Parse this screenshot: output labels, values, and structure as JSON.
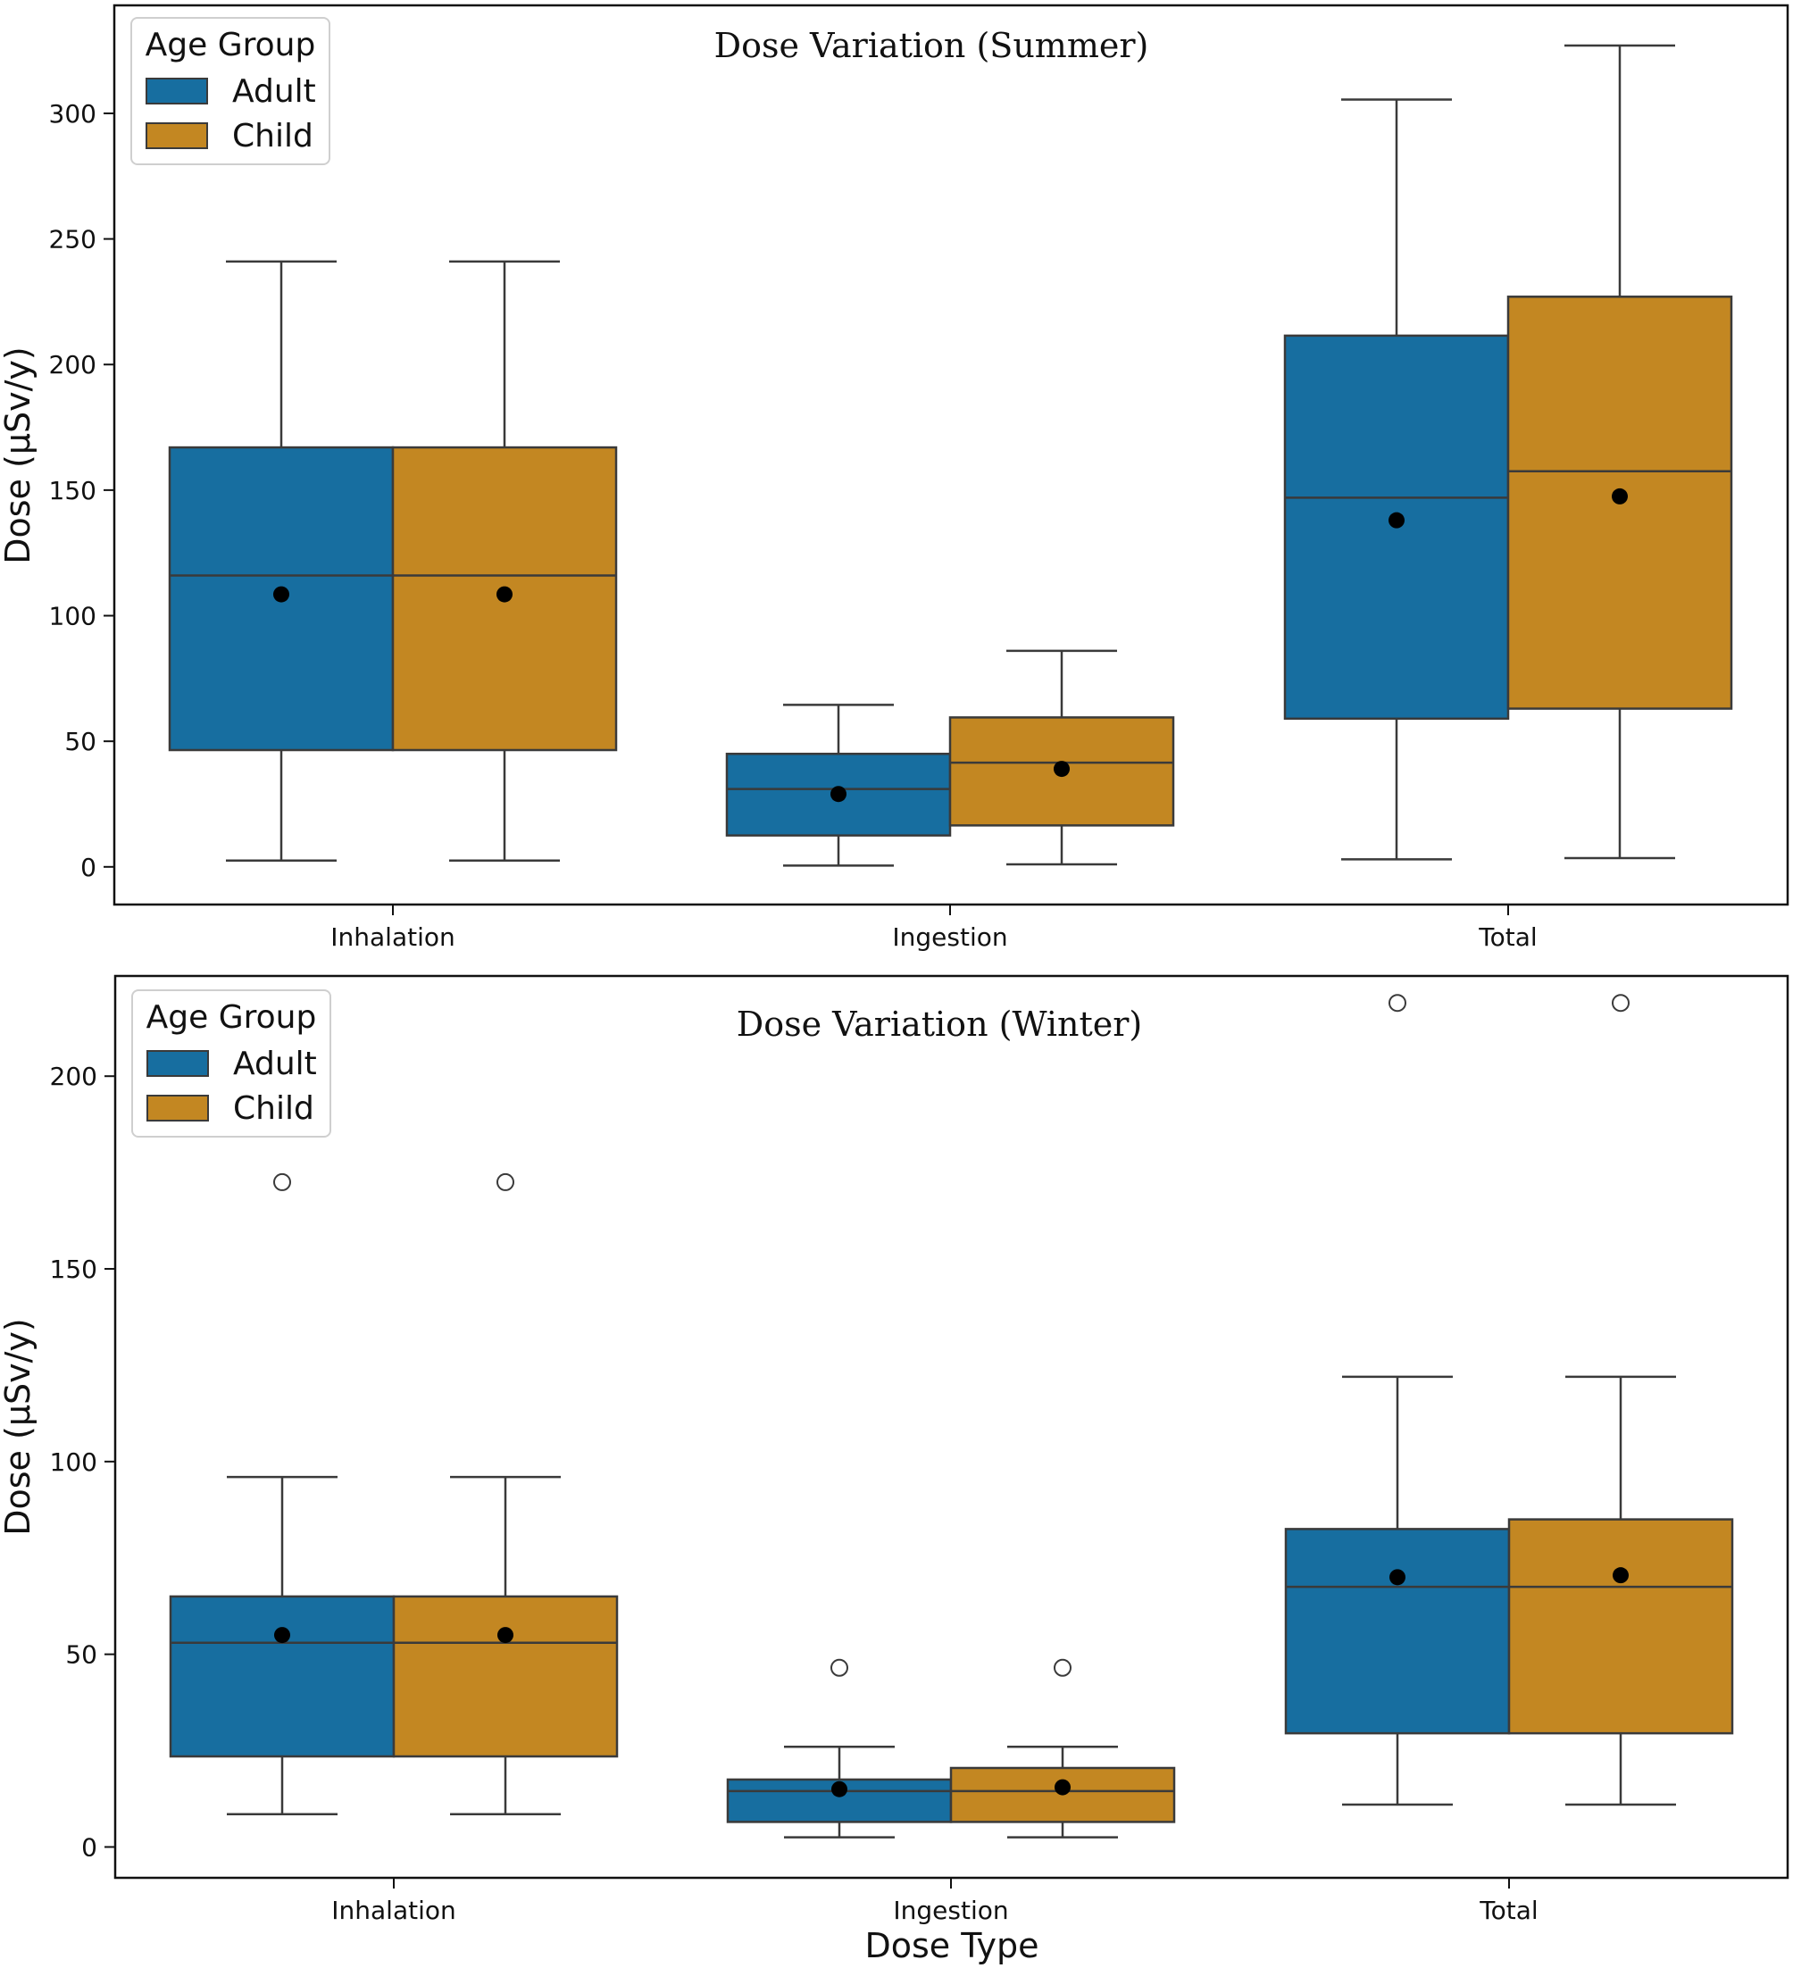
{
  "x_axis_label": "Dose Type",
  "colors": {
    "adult": "#176ea0",
    "child": "#c38722",
    "edge": "#3a3a3a",
    "mean_marker": "#000000",
    "outlier_fill": "#ffffff"
  },
  "chart_data": [
    {
      "type": "box",
      "title": "Dose Variation (Summer)",
      "xlabel": "",
      "ylabel": "Dose (µSv/y)",
      "categories": [
        "Inhalation",
        "Ingestion",
        "Total"
      ],
      "ylim": [
        -15,
        343
      ],
      "yticks": [
        0,
        50,
        100,
        150,
        200,
        250,
        300
      ],
      "legend": {
        "title": "Age Group",
        "entries": [
          "Adult",
          "Child"
        ],
        "position": "top-left"
      },
      "grid": false,
      "series": [
        {
          "name": "Adult",
          "boxes": [
            {
              "category": "Inhalation",
              "whisker_low": 2.5,
              "q1": 46.5,
              "median": 116,
              "q3": 167,
              "whisker_high": 241,
              "mean": 108.5,
              "outliers": []
            },
            {
              "category": "Ingestion",
              "whisker_low": 0.5,
              "q1": 12.5,
              "median": 31,
              "q3": 45,
              "whisker_high": 64.5,
              "mean": 29,
              "outliers": []
            },
            {
              "category": "Total",
              "whisker_low": 3,
              "q1": 59,
              "median": 147,
              "q3": 211.5,
              "whisker_high": 305.5,
              "mean": 138,
              "outliers": []
            }
          ]
        },
        {
          "name": "Child",
          "boxes": [
            {
              "category": "Inhalation",
              "whisker_low": 2.5,
              "q1": 46.5,
              "median": 116,
              "q3": 167,
              "whisker_high": 241,
              "mean": 108.5,
              "outliers": []
            },
            {
              "category": "Ingestion",
              "whisker_low": 1,
              "q1": 16.5,
              "median": 41.5,
              "q3": 59.5,
              "whisker_high": 86,
              "mean": 39,
              "outliers": []
            },
            {
              "category": "Total",
              "whisker_low": 3.5,
              "q1": 63,
              "median": 157.5,
              "q3": 227,
              "whisker_high": 327,
              "mean": 147.5,
              "outliers": []
            }
          ]
        }
      ]
    },
    {
      "type": "box",
      "title": "Dose Variation (Winter)",
      "xlabel": "Dose Type",
      "ylabel": "Dose (µSv/y)",
      "categories": [
        "Inhalation",
        "Ingestion",
        "Total"
      ],
      "ylim": [
        -8,
        226
      ],
      "yticks": [
        0,
        50,
        100,
        150,
        200
      ],
      "legend": {
        "title": "Age Group",
        "entries": [
          "Adult",
          "Child"
        ],
        "position": "top-left"
      },
      "grid": false,
      "series": [
        {
          "name": "Adult",
          "boxes": [
            {
              "category": "Inhalation",
              "whisker_low": 8.5,
              "q1": 23.5,
              "median": 53,
              "q3": 65,
              "whisker_high": 96,
              "mean": 55,
              "outliers": [
                172.5
              ]
            },
            {
              "category": "Ingestion",
              "whisker_low": 2.5,
              "q1": 6.5,
              "median": 14.5,
              "q3": 17.5,
              "whisker_high": 26,
              "mean": 15,
              "outliers": [
                46.5
              ]
            },
            {
              "category": "Total",
              "whisker_low": 11,
              "q1": 29.5,
              "median": 67.5,
              "q3": 82.5,
              "whisker_high": 122,
              "mean": 70,
              "outliers": [
                219
              ]
            }
          ]
        },
        {
          "name": "Child",
          "boxes": [
            {
              "category": "Inhalation",
              "whisker_low": 8.5,
              "q1": 23.5,
              "median": 53,
              "q3": 65,
              "whisker_high": 96,
              "mean": 55,
              "outliers": [
                172.5
              ]
            },
            {
              "category": "Ingestion",
              "whisker_low": 2.5,
              "q1": 6.5,
              "median": 14.5,
              "q3": 20.5,
              "whisker_high": 26,
              "mean": 15.5,
              "outliers": [
                46.5
              ]
            },
            {
              "category": "Total",
              "whisker_low": 11,
              "q1": 29.5,
              "median": 67.5,
              "q3": 85,
              "whisker_high": 122,
              "mean": 70.5,
              "outliers": [
                219
              ]
            }
          ]
        }
      ]
    }
  ]
}
